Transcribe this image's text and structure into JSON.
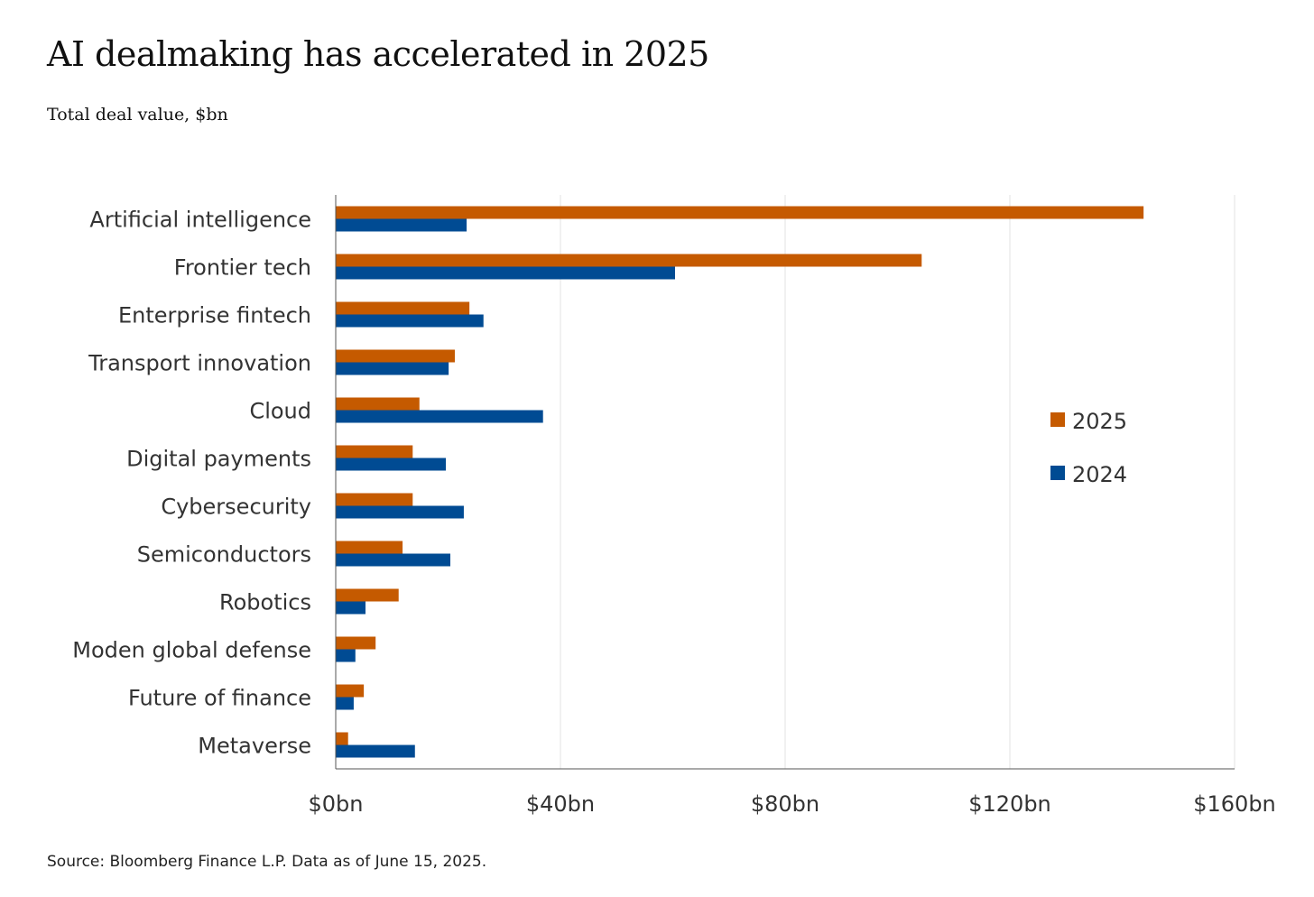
{
  "chart_data": {
    "type": "bar",
    "orientation": "horizontal",
    "title": "AI dealmaking has accelerated in 2025",
    "subtitle": "Total deal value, $bn",
    "source": "Source: Bloomberg Finance L.P. Data as of June 15, 2025.",
    "categories": [
      "Artificial intelligence",
      "Frontier tech",
      "Enterprise fintech",
      "Transport innovation",
      "Cloud",
      "Digital payments",
      "Cybersecurity",
      "Semiconductors",
      "Robotics",
      "Moden global defense",
      "Future of finance",
      "Metaverse"
    ],
    "series": [
      {
        "name": "2025",
        "color": "#c55a00",
        "values": [
          143.8,
          104.3,
          23.8,
          21.2,
          14.9,
          13.7,
          13.7,
          11.9,
          11.2,
          7.1,
          5.0,
          2.2
        ]
      },
      {
        "name": "2024",
        "color": "#004b93",
        "values": [
          23.3,
          60.4,
          26.3,
          20.1,
          36.9,
          19.6,
          22.8,
          20.4,
          5.3,
          3.5,
          3.2,
          14.1
        ]
      }
    ],
    "xlim": [
      0,
      160
    ],
    "xticks": [
      0,
      40,
      80,
      120,
      160
    ],
    "xtick_labels": [
      "$0bn",
      "$40bn",
      "$80bn",
      "$120bn",
      "$160bn"
    ],
    "grid": "vertical",
    "legend": "right",
    "xlabel": "",
    "ylabel": ""
  }
}
